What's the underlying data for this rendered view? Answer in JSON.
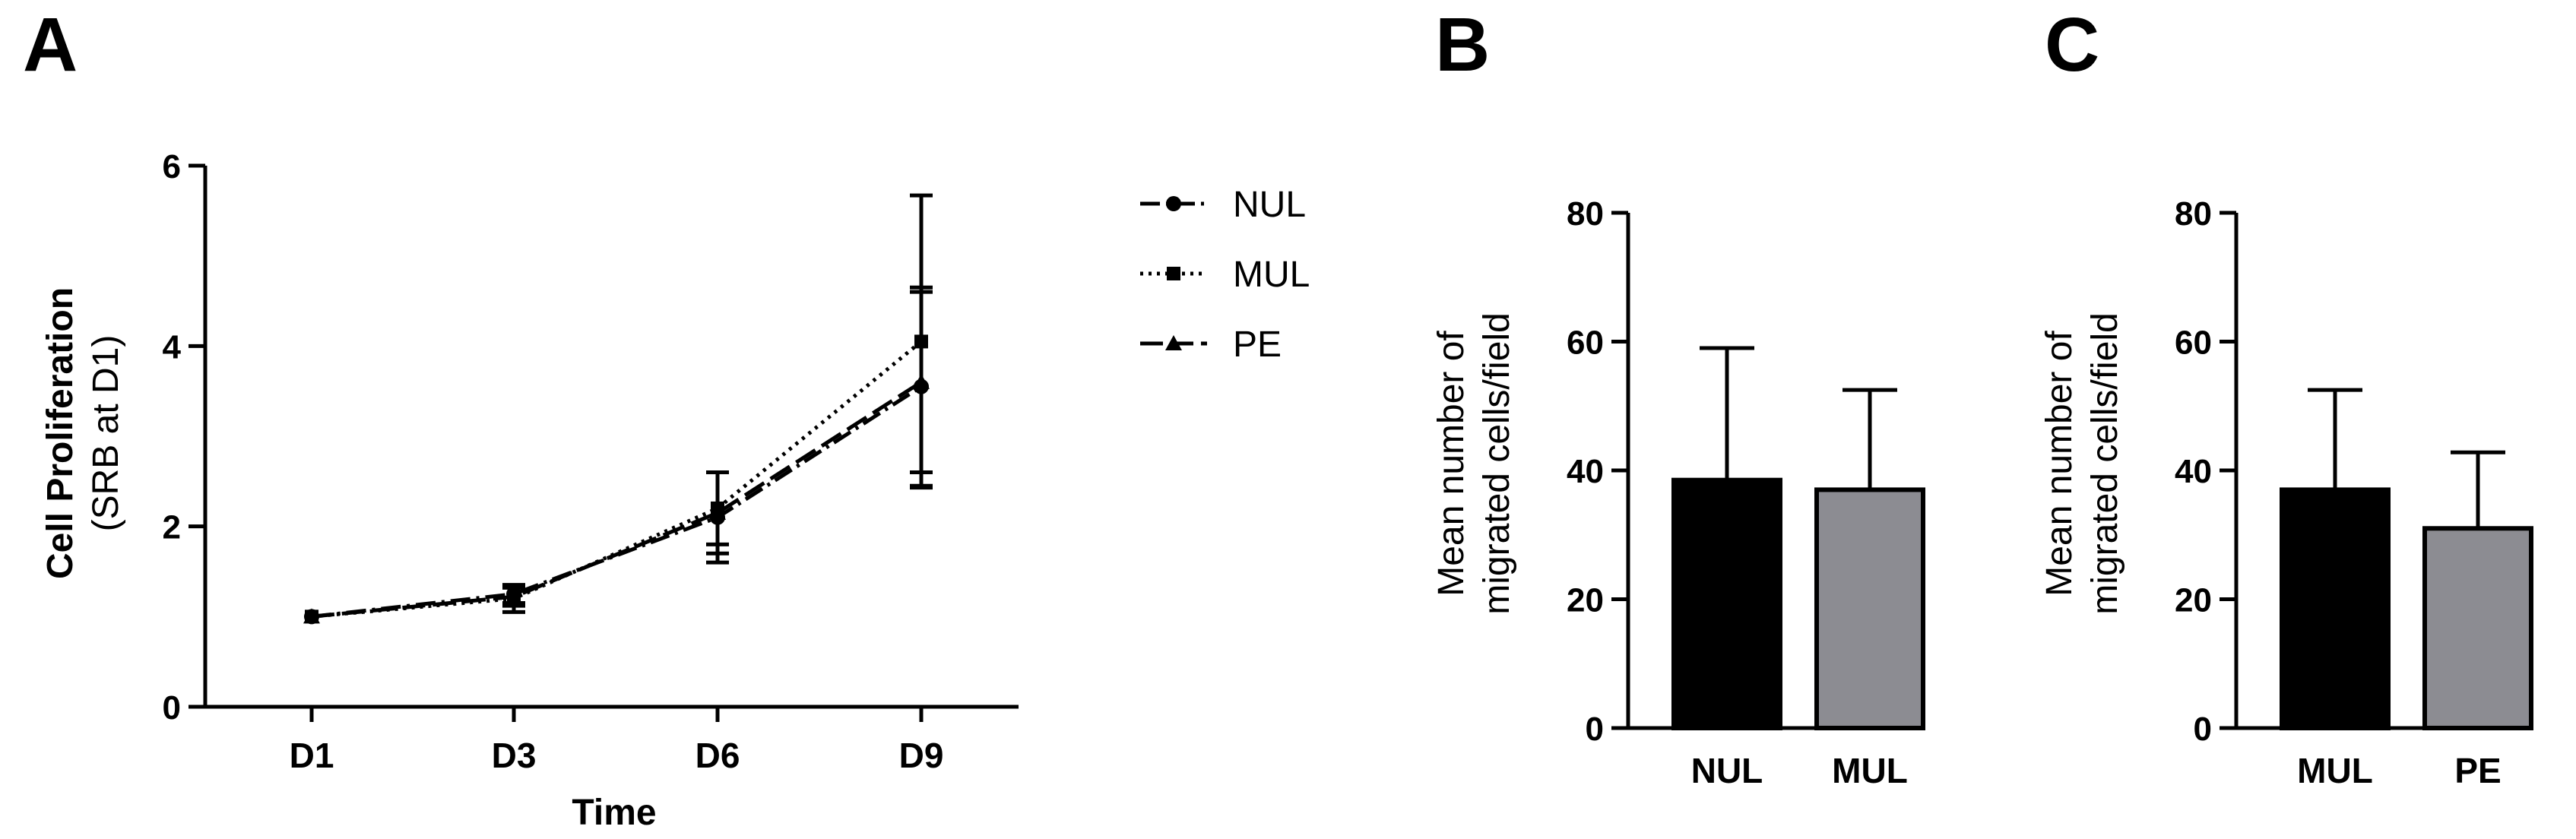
{
  "panels": {
    "a": "A",
    "b": "B",
    "c": "C"
  },
  "styles": {
    "line_color": "#000000",
    "bar_black": "#000000",
    "bar_gray": "#8c8c92"
  },
  "chart_data": [
    {
      "id": "A",
      "type": "line",
      "xlabel": "Time",
      "ylabel": "Cell Proliferation",
      "ylabel2": "(SRB at D1)",
      "categories": [
        "D1",
        "D3",
        "D6",
        "D9"
      ],
      "ylim": [
        0,
        6
      ],
      "yticks": [
        "0",
        "2",
        "4",
        "6"
      ],
      "legend_position": "right",
      "series": [
        {
          "name": "NUL",
          "marker": "circle",
          "dash": "dash-dot",
          "values": [
            1.0,
            1.25,
            2.1,
            3.55
          ],
          "errors": [
            0.0,
            0.1,
            0.5,
            1.1
          ]
        },
        {
          "name": "MUL",
          "marker": "square",
          "dash": "dotted",
          "values": [
            1.0,
            1.2,
            2.2,
            4.05
          ],
          "errors": [
            0.0,
            0.15,
            0.4,
            1.62
          ]
        },
        {
          "name": "PE",
          "marker": "triangle",
          "dash": "long-dash",
          "values": [
            1.0,
            1.22,
            2.15,
            3.6
          ],
          "errors": [
            0.0,
            0.1,
            0.45,
            1.0
          ]
        }
      ]
    },
    {
      "id": "B",
      "type": "bar",
      "ylabel": "Mean number of",
      "ylabel2": "migrated cells/field",
      "categories": [
        "NUL",
        "MUL"
      ],
      "values": [
        38.5,
        37
      ],
      "errors": [
        20.5,
        15.5
      ],
      "colors": [
        "#000000",
        "#8c8c92"
      ],
      "ylim": [
        0,
        80
      ],
      "yticks": [
        "0",
        "20",
        "40",
        "60",
        "80"
      ]
    },
    {
      "id": "C",
      "type": "bar",
      "ylabel": "Mean number of",
      "ylabel2": "migrated cells/field",
      "categories": [
        "MUL",
        "PE"
      ],
      "values": [
        37,
        31
      ],
      "errors": [
        15.5,
        11.8
      ],
      "colors": [
        "#000000",
        "#8c8c92"
      ],
      "ylim": [
        0,
        80
      ],
      "yticks": [
        "0",
        "20",
        "40",
        "60",
        "80"
      ]
    }
  ]
}
